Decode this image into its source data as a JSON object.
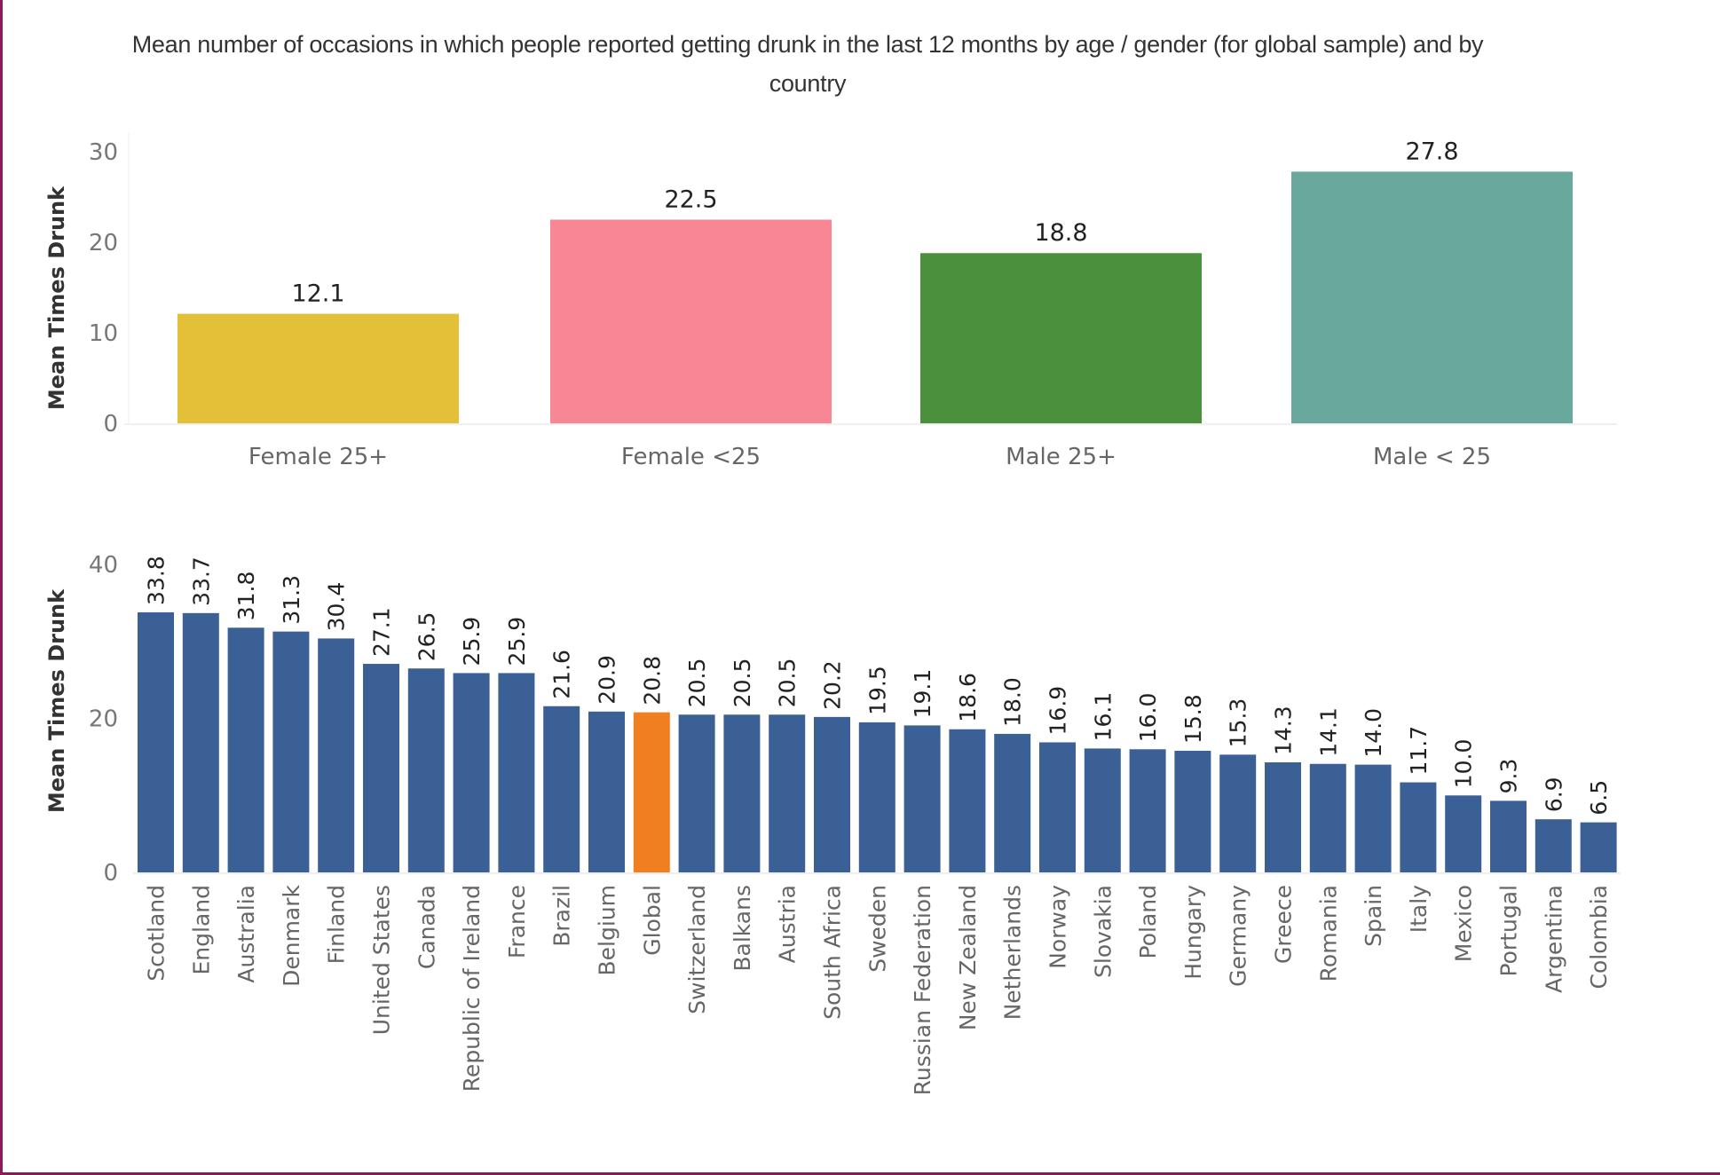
{
  "title": "Mean number of occasions in which people reported getting drunk in the last 12 months by age / gender (for global sample) and by country",
  "title_lines": [
    "Mean number of occasions in which people reported getting drunk in the last 12 months by age / gender (for global sample) and by",
    "country"
  ],
  "colors": {
    "frame": "#8b1a5a",
    "country_bar": "#3b6096",
    "highlight_bar": "#f07f22",
    "axis": "#eeeeee"
  },
  "chart_data": [
    {
      "type": "bar",
      "title": "Mean number of occasions in which people reported getting drunk in the last 12 months by age / gender (for global sample) and by country",
      "xlabel": "",
      "ylabel": "Mean Times Drunk",
      "ylim": [
        0,
        30
      ],
      "yticks": [
        "0",
        "10",
        "20",
        "30"
      ],
      "grid": false,
      "categories": [
        "Female 25+",
        "Female <25",
        "Male 25+",
        "Male < 25"
      ],
      "values": [
        12.1,
        22.5,
        18.8,
        27.8
      ],
      "value_labels": [
        "12.1",
        "22.5",
        "18.8",
        "27.8"
      ],
      "colors": [
        "#e4bf38",
        "#f88694",
        "#4b913d",
        "#69a89d"
      ]
    },
    {
      "type": "bar",
      "xlabel": "",
      "ylabel": "Mean Times Drunk",
      "ylim": [
        0,
        40
      ],
      "yticks": [
        "0",
        "20",
        "40"
      ],
      "grid": false,
      "highlight": "Global",
      "categories": [
        "Scotland",
        "England",
        "Australia",
        "Denmark",
        "Finland",
        "United States",
        "Canada",
        "Republic of Ireland",
        "France",
        "Brazil",
        "Belgium",
        "Global",
        "Switzerland",
        "Balkans",
        "Austria",
        "South Africa",
        "Sweden",
        "Russian Federation",
        "New Zealand",
        "Netherlands",
        "Norway",
        "Slovakia",
        "Poland",
        "Hungary",
        "Germany",
        "Greece",
        "Romania",
        "Spain",
        "Italy",
        "Mexico",
        "Portugal",
        "Argentina",
        "Colombia"
      ],
      "values": [
        33.8,
        33.7,
        31.8,
        31.3,
        30.4,
        27.1,
        26.5,
        25.9,
        25.9,
        21.6,
        20.9,
        20.8,
        20.5,
        20.5,
        20.5,
        20.2,
        19.5,
        19.1,
        18.6,
        18.0,
        16.9,
        16.1,
        16.0,
        15.8,
        15.3,
        14.3,
        14.1,
        14.0,
        11.7,
        10.0,
        9.3,
        6.9,
        6.5
      ],
      "value_labels": [
        "33.8",
        "33.7",
        "31.8",
        "31.3",
        "30.4",
        "27.1",
        "26.5",
        "25.9",
        "25.9",
        "21.6",
        "20.9",
        "20.8",
        "20.5",
        "20.5",
        "20.5",
        "20.2",
        "19.5",
        "19.1",
        "18.6",
        "18.0",
        "16.9",
        "16.1",
        "16.0",
        "15.8",
        "15.3",
        "14.3",
        "14.1",
        "14.0",
        "11.7",
        "10.0",
        "9.3",
        "6.9",
        "6.5"
      ]
    }
  ]
}
